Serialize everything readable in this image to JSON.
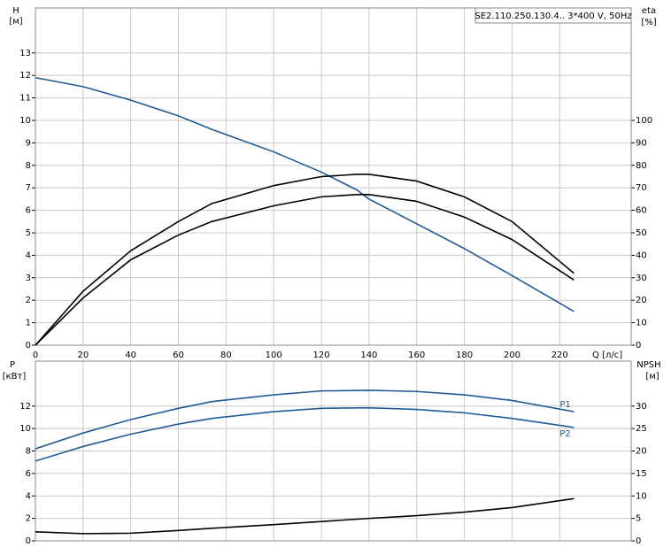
{
  "chart_data": [
    {
      "type": "line",
      "title": "SE2.110.250.130.4.. 3*400 V, 50Hz",
      "y_label": "H",
      "y_unit": "[м]",
      "y2_label": "eta",
      "y2_unit": "[%]",
      "x_label": "Q [л/с]",
      "x": [
        0,
        20,
        40,
        60,
        74,
        100,
        120,
        135,
        140,
        160,
        180,
        200,
        226
      ],
      "xlim": [
        0,
        250
      ],
      "xticks": [
        0,
        20,
        40,
        60,
        80,
        100,
        120,
        140,
        160,
        180,
        200,
        220
      ],
      "ylim": [
        0,
        15
      ],
      "yticks": [
        0,
        1,
        2,
        3,
        4,
        5,
        6,
        7,
        8,
        9,
        10,
        11,
        12,
        13
      ],
      "y2lim": [
        0,
        150
      ],
      "y2ticks": [
        0,
        10,
        20,
        30,
        40,
        50,
        60,
        70,
        80,
        90,
        100
      ],
      "grid": true,
      "series": [
        {
          "color": "#1f5a96",
          "values": [
            11.9,
            11.5,
            10.9,
            10.2,
            9.6,
            8.6,
            7.7,
            6.9,
            6.5,
            5.4,
            4.3,
            3.1,
            1.5
          ]
        },
        {
          "color": "#000000",
          "axis": "y2",
          "values": [
            0,
            24,
            42,
            55,
            63,
            71,
            75,
            76,
            76,
            73,
            66,
            55,
            32
          ]
        },
        {
          "color": "#000000",
          "axis": "y2",
          "values": [
            0,
            21,
            38,
            49,
            55,
            62,
            66,
            67,
            67,
            64,
            57,
            47,
            29
          ]
        }
      ]
    },
    {
      "type": "line",
      "y_label": "P",
      "y_unit": "[кВт]",
      "y2_label": "NPSH",
      "y2_unit": "[м]",
      "x": [
        0,
        20,
        40,
        60,
        74,
        100,
        120,
        140,
        160,
        180,
        200,
        226
      ],
      "xlim": [
        0,
        250
      ],
      "ylim": [
        0,
        16
      ],
      "yticks": [
        0,
        2,
        4,
        6,
        8,
        10,
        12
      ],
      "y2lim": [
        0,
        40
      ],
      "y2ticks": [
        0,
        5,
        10,
        15,
        20,
        25,
        30
      ],
      "grid": true,
      "series": [
        {
          "name": "P1",
          "color": "#1f5a96",
          "values": [
            8.2,
            9.6,
            10.8,
            11.8,
            12.4,
            13.0,
            13.35,
            13.4,
            13.3,
            13.0,
            12.5,
            11.5
          ]
        },
        {
          "name": "P2",
          "color": "#1f5a96",
          "values": [
            7.1,
            8.4,
            9.5,
            10.4,
            10.9,
            11.5,
            11.8,
            11.85,
            11.7,
            11.4,
            10.9,
            10.1
          ]
        },
        {
          "color": "#000000",
          "axis": "y2",
          "values": [
            2.0,
            1.6,
            1.7,
            2.3,
            2.8,
            3.6,
            4.3,
            5.0,
            5.6,
            6.4,
            7.4,
            9.4
          ]
        }
      ]
    }
  ]
}
